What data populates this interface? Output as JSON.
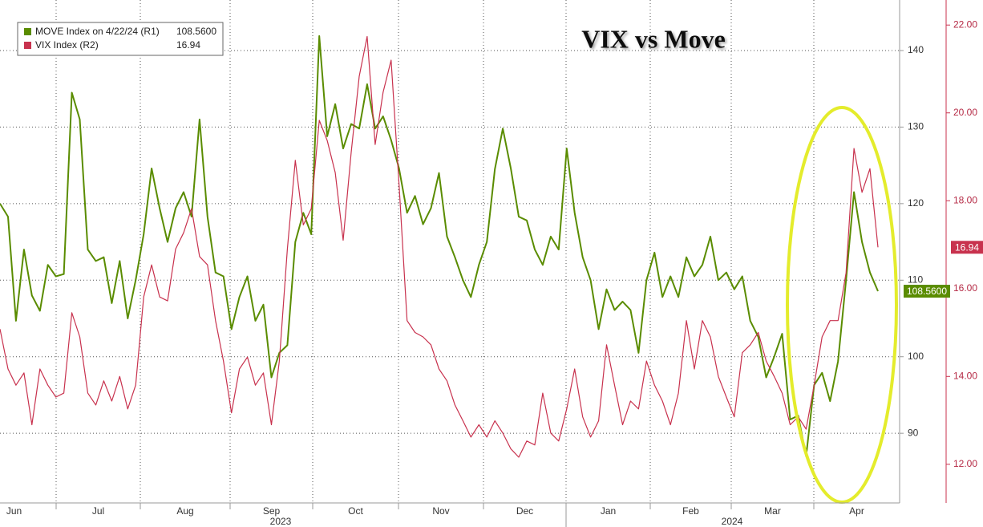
{
  "chart_data": {
    "type": "line",
    "title": "VIX vs Move",
    "months": [
      "Jun",
      "Jul",
      "Aug",
      "Sep",
      "Oct",
      "Nov",
      "Dec",
      "Jan",
      "Feb",
      "Mar",
      "Apr"
    ],
    "years": [
      "2023",
      "2024"
    ],
    "ylim": [
      80.9,
      146.6
    ],
    "yticks": [
      90,
      100,
      110,
      120,
      130,
      140
    ],
    "y2lim": [
      11.12,
      22.57
    ],
    "y2ticks": [
      {
        "value": 12,
        "label": "12.00"
      },
      {
        "value": 14,
        "label": "14.00"
      },
      {
        "value": 16,
        "label": "16.00"
      },
      {
        "value": 18,
        "label": "18.00"
      },
      {
        "value": 20,
        "label": "20.00"
      },
      {
        "value": 22,
        "label": "22.00"
      }
    ],
    "grid": true,
    "legend_values": [
      "108.5600",
      "16.94"
    ],
    "series": [
      {
        "name": "MOVE Index on 4/22/24 (R1)",
        "color": "#5a8c00",
        "axis": "y",
        "values": [
          120,
          118.3,
          104.7,
          114,
          108,
          106,
          112,
          110.5,
          110.8,
          134.5,
          131,
          114,
          112.5,
          113,
          107,
          112.5,
          105,
          110,
          116,
          124.6,
          119.4,
          115,
          119.4,
          121.5,
          118.3,
          131,
          118.3,
          111,
          110.5,
          103.6,
          107.8,
          110.5,
          104.7,
          106.8,
          97.3,
          100.5,
          101.5,
          115,
          118.8,
          116,
          141.9,
          128.8,
          133,
          127.2,
          130.4,
          129.8,
          135.6,
          129.8,
          131.4,
          128.3,
          124.6,
          118.8,
          121,
          117.3,
          119.4,
          124,
          115.7,
          113,
          110,
          107.8,
          112,
          115,
          124.5,
          129.8,
          124.6,
          118.3,
          117.8,
          114,
          112,
          115.7,
          114,
          127.2,
          118.8,
          113,
          110,
          103.6,
          108.8,
          106.1,
          107.2,
          106.1,
          100.5,
          110,
          113.6,
          107.8,
          110.5,
          107.8,
          113,
          110.5,
          112,
          115.7,
          110,
          111,
          108.8,
          110.5,
          104.7,
          102.6,
          97.3,
          100,
          103,
          91.8,
          92.3,
          87,
          96.3,
          97.9,
          94.2,
          99.4,
          110,
          121.5,
          115,
          111,
          108.56
        ]
      },
      {
        "name": "VIX Index (R2)",
        "color": "#c8324e",
        "axis": "y2",
        "values": [
          15.08,
          14.17,
          13.8,
          14.08,
          12.9,
          14.17,
          13.8,
          13.53,
          13.62,
          15.45,
          14.9,
          13.62,
          13.35,
          13.9,
          13.44,
          14,
          13.26,
          13.8,
          15.81,
          16.54,
          15.81,
          15.72,
          16.9,
          17.27,
          17.82,
          16.73,
          16.54,
          15.27,
          14.35,
          13.17,
          14.17,
          14.44,
          13.8,
          14.08,
          12.9,
          14.35,
          16.9,
          18.92,
          17.45,
          17.82,
          19.83,
          19.37,
          18.64,
          17.1,
          19.1,
          20.83,
          21.74,
          19.28,
          20.47,
          21.2,
          18.37,
          15.27,
          15,
          14.9,
          14.72,
          14.17,
          13.9,
          13.35,
          12.99,
          12.62,
          12.9,
          12.62,
          12.99,
          12.71,
          12.35,
          12.16,
          12.53,
          12.44,
          13.62,
          12.71,
          12.53,
          13.26,
          14.17,
          13.08,
          12.62,
          12.99,
          14.72,
          13.8,
          12.9,
          13.44,
          13.26,
          14.35,
          13.8,
          13.44,
          12.9,
          13.62,
          15.27,
          14.17,
          15.27,
          14.9,
          14,
          13.53,
          13.08,
          14.54,
          14.72,
          15,
          14.35,
          14,
          13.62,
          12.9,
          13.08,
          12.8,
          13.8,
          14.9,
          15.27,
          15.27,
          16.36,
          19.19,
          18.19,
          18.73,
          16.94
        ]
      }
    ]
  }
}
